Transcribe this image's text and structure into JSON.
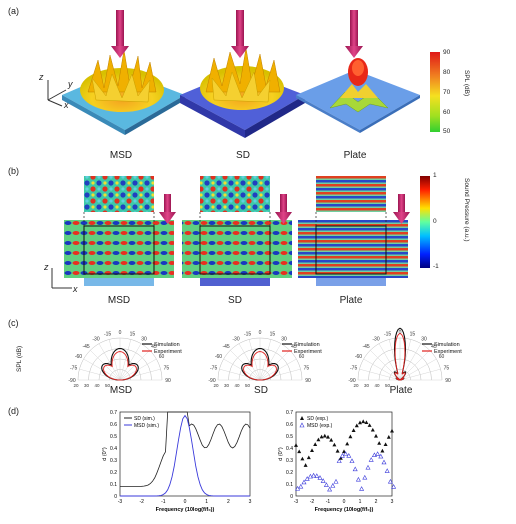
{
  "panels": {
    "a": {
      "label": "(a)",
      "axes": {
        "z": "z",
        "y": "y",
        "x": "x"
      },
      "captions": [
        "MSD",
        "SD",
        "Plate"
      ],
      "colorbar": {
        "title": "SPL (dB)",
        "ticks": [
          "90",
          "80",
          "70",
          "60",
          "50"
        ]
      }
    },
    "b": {
      "label": "(b)",
      "axes": {
        "z": "z",
        "x": "x"
      },
      "captions": [
        "MSD",
        "SD",
        "Plate"
      ],
      "colorbar": {
        "title": "Sound Pressure (a.u.)",
        "ticks": [
          "1",
          "0",
          "-1"
        ]
      }
    },
    "c": {
      "label": "(c)",
      "y_axis_label": "SPL (dB)",
      "captions": [
        "MSD",
        "SD",
        "Plate"
      ],
      "legend": [
        "Simulation",
        "Experiment"
      ],
      "angle_ticks": [
        "-90",
        "-75",
        "-60",
        "-45",
        "-30",
        "-15",
        "0",
        "15",
        "30",
        "45",
        "60",
        "75",
        "90"
      ],
      "radial_ticks": [
        "20",
        "30",
        "40",
        "50"
      ]
    },
    "d": {
      "label": "(d)",
      "left": {
        "legend": [
          "SD (sim.)",
          "MSD (sim.)"
        ],
        "ylabel": "d (0°)",
        "xlabel": "Frequency (10log(f/f₀))",
        "xticks": [
          "-3",
          "-2",
          "-1",
          "0",
          "1",
          "2",
          "3"
        ],
        "yticks": [
          "0",
          "0.1",
          "0.2",
          "0.3",
          "0.4",
          "0.5",
          "0.6",
          "0.7"
        ]
      },
      "right": {
        "legend": [
          "SD (exp.)",
          "MSD (exp.)"
        ],
        "ylabel": "d (0°)",
        "xlabel": "Frequency (10log(f/f₀))",
        "xticks": [
          "-3",
          "-2",
          "-1",
          "0",
          "1",
          "2",
          "3"
        ],
        "yticks": [
          "0",
          "0.1",
          "0.2",
          "0.3",
          "0.4",
          "0.5",
          "0.6",
          "0.7"
        ]
      }
    }
  },
  "colors": {
    "arrow": "#c8206e",
    "blue": "#3a3adb",
    "black": "#111111",
    "red": "#e0201e"
  }
}
